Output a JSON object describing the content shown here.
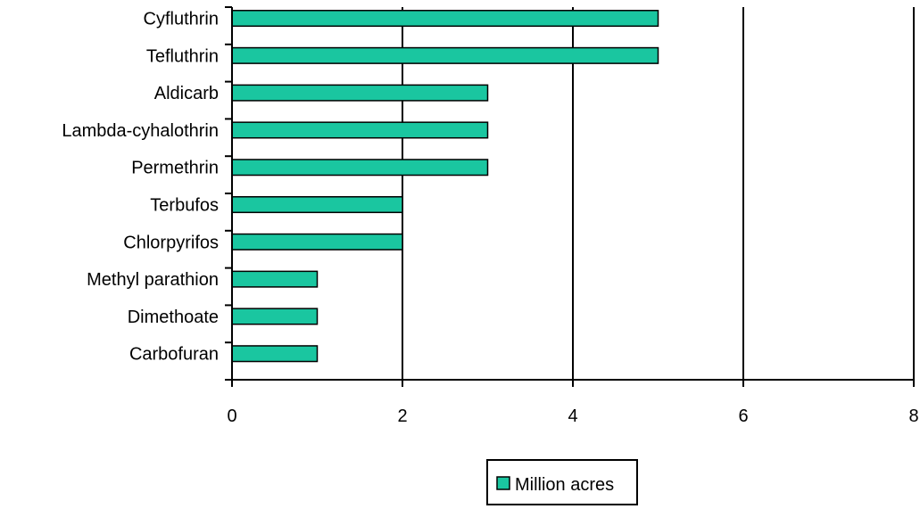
{
  "chart_data": {
    "type": "bar",
    "orientation": "horizontal",
    "title": "",
    "xlabel": "",
    "ylabel": "",
    "categories": [
      "Cyfluthrin",
      "Tefluthrin",
      "Aldicarb",
      "Lambda-cyhalothrin",
      "Permethrin",
      "Terbufos",
      "Chlorpyrifos",
      "Methyl parathion",
      "Dimethoate",
      "Carbofuran"
    ],
    "category_labels": [
      "Cyfluthrin",
      "Tefluthrin",
      "Aldicarb",
      "Lambda-cyhalothrin",
      "Permethrin",
      "Terbufos",
      "Chlorpyrifos",
      "Methyl parathion",
      "Dimethoate",
      "Carbofuran"
    ],
    "series": [
      {
        "name": "Million acres",
        "values": [
          5,
          5,
          3,
          3,
          3,
          2,
          2,
          1,
          1,
          1
        ],
        "color": "#1ac6a0"
      }
    ],
    "xlim": [
      0,
      8
    ],
    "xticks": [
      "0",
      "2",
      "4",
      "6",
      "8"
    ],
    "grid": "vertical",
    "legend_position": "bottom"
  }
}
